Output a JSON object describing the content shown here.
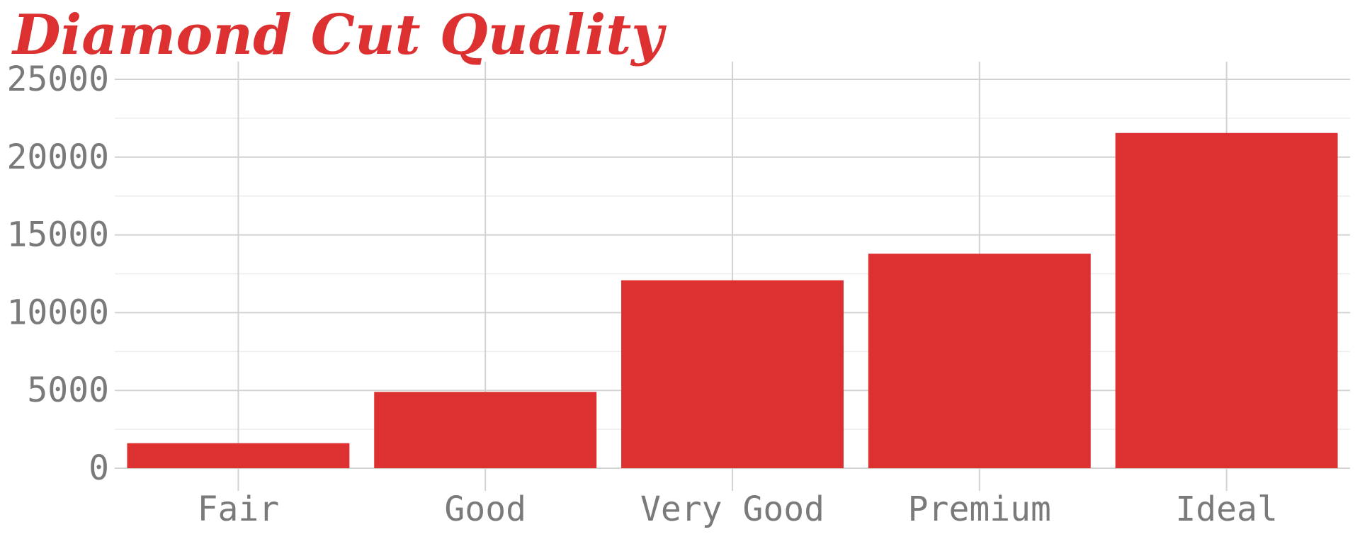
{
  "chart_data": {
    "type": "bar",
    "title": "Diamond Cut Quality",
    "xlabel": "",
    "ylabel": "",
    "categories": [
      "Fair",
      "Good",
      "Very Good",
      "Premium",
      "Ideal"
    ],
    "values": [
      1610,
      4906,
      12082,
      13791,
      21551
    ],
    "ylim": [
      0,
      25000
    ],
    "yticks": [
      0,
      5000,
      10000,
      15000,
      20000,
      25000
    ],
    "ytick_labels": [
      "0",
      "5000",
      "10000",
      "15000",
      "20000",
      "25000"
    ],
    "grid": true,
    "legend": "none",
    "colors": {
      "bar": "#dc3130",
      "title": "#dc3130",
      "tick_label": "#7a7a7a",
      "grid_major": "#d2d2d2",
      "grid_minor": "#ececec"
    }
  }
}
